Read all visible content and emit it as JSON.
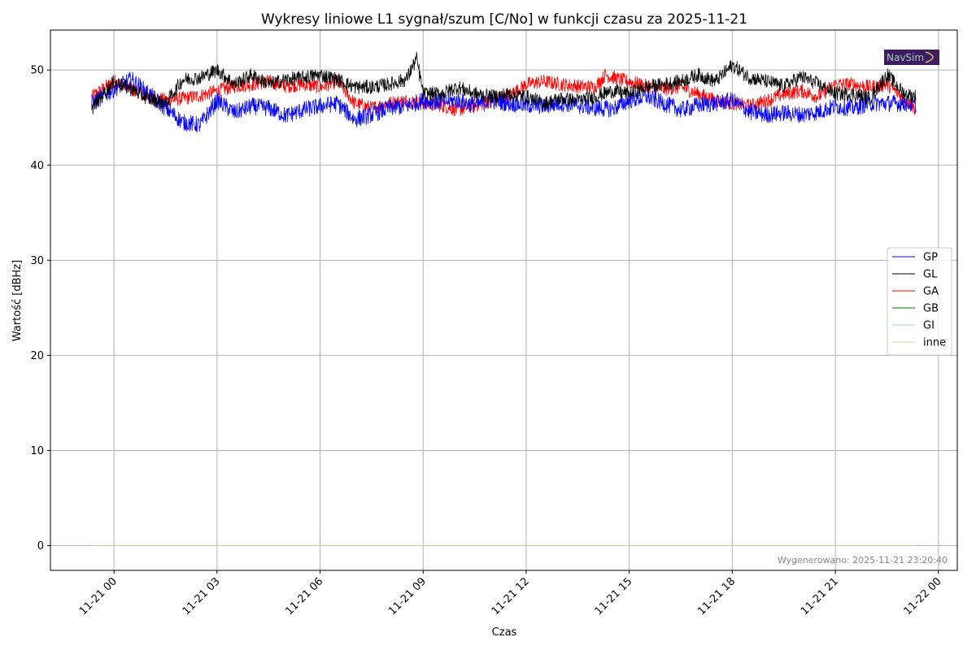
{
  "chart_data": {
    "type": "line",
    "title": "Wykresy liniowe L1 sygnał/szum [C/No] w funkcji czasu za 2025-11-21",
    "xlabel": "Czas",
    "ylabel": "Wartość [dBHz]",
    "x_ticks": [
      "11-21 00",
      "11-21 03",
      "11-21 06",
      "11-21 09",
      "11-21 12",
      "11-21 15",
      "11-21 18",
      "11-21 21",
      "11-22 00"
    ],
    "x_tick_hours": [
      0,
      3,
      6,
      9,
      12,
      15,
      18,
      21,
      24
    ],
    "xlim_hours": [
      -1.85,
      24.55
    ],
    "data_range_hours": [
      -0.65,
      23.35
    ],
    "y_ticks": [
      0,
      10,
      20,
      30,
      40,
      50
    ],
    "ylim": [
      -2.6,
      54.2
    ],
    "grid": true,
    "legend_position": "center-right",
    "series": [
      {
        "name": "GP",
        "color": "#0000ff",
        "x_hours": [
          -0.65,
          0,
          0.5,
          1,
          1.5,
          2,
          2.5,
          3,
          3.5,
          4,
          4.5,
          5,
          5.5,
          6,
          6.5,
          7,
          7.5,
          8,
          8.5,
          9,
          9.5,
          10,
          10.5,
          11,
          11.5,
          12,
          12.5,
          13,
          13.5,
          14,
          14.5,
          15,
          15.5,
          16,
          16.5,
          17,
          17.5,
          18,
          18.5,
          19,
          19.5,
          20,
          20.5,
          21,
          21.5,
          22,
          22.5,
          23,
          23.35
        ],
        "values": [
          46.5,
          48,
          49,
          47.5,
          46,
          44.5,
          44.2,
          46.8,
          45.5,
          46.2,
          46,
          45.2,
          45.8,
          46.2,
          46.5,
          44.8,
          45.3,
          46,
          46.2,
          46.8,
          46.6,
          46.8,
          46.3,
          46.8,
          46.5,
          46.3,
          46.2,
          46.5,
          46.3,
          46,
          45.9,
          46.8,
          47.2,
          46.5,
          45.8,
          46.3,
          46.5,
          46.8,
          45.6,
          45.3,
          45.5,
          45.3,
          45.6,
          46.2,
          46,
          46.5,
          46.5,
          46.5,
          46.3
        ]
      },
      {
        "name": "GL",
        "color": "#000000",
        "x_hours": [
          -0.65,
          0,
          0.5,
          1,
          1.5,
          2,
          2.5,
          3,
          3.5,
          4,
          4.5,
          5,
          5.5,
          6,
          6.5,
          7,
          7.5,
          8,
          8.5,
          8.8,
          9,
          9.5,
          10,
          10.5,
          11,
          11.5,
          12,
          12.5,
          13,
          13.5,
          14,
          14.5,
          15,
          15.5,
          16,
          16.5,
          17,
          17.5,
          18,
          18.5,
          19,
          19.5,
          20,
          20.5,
          21,
          21.5,
          22,
          22.5,
          23,
          23.35
        ],
        "values": [
          46,
          48.8,
          48,
          47,
          46.5,
          49,
          49.2,
          50,
          48.5,
          49.5,
          48.5,
          49,
          49.2,
          49.5,
          49,
          48.2,
          48.2,
          48.5,
          49,
          51.2,
          47.5,
          47.5,
          48.2,
          47.5,
          47.2,
          47.5,
          47.2,
          46.5,
          47,
          46.8,
          47.2,
          47.8,
          47.5,
          48.2,
          48.5,
          48.8,
          49.5,
          48.8,
          50.5,
          49.2,
          48.8,
          48.3,
          49.3,
          48.5,
          47.5,
          47.5,
          47,
          49.5,
          47.5,
          47.2
        ]
      },
      {
        "name": "GA",
        "color": "#ff0000",
        "x_hours": [
          -0.65,
          0,
          0.5,
          1,
          1.5,
          2,
          2.5,
          3,
          3.5,
          4,
          4.5,
          5,
          5.5,
          6,
          6.5,
          7,
          7.5,
          8,
          8.5,
          9,
          9.5,
          10,
          10.5,
          11,
          11.5,
          12,
          12.5,
          13,
          13.5,
          14,
          14.3,
          14.7,
          15,
          15.5,
          16,
          16.5,
          17,
          17.5,
          18,
          18.5,
          19,
          19.5,
          20,
          20.5,
          21,
          21.5,
          22,
          22.5,
          23,
          23.35
        ],
        "values": [
          47.2,
          48.8,
          48,
          47.2,
          46.8,
          47,
          47.3,
          47.8,
          48.3,
          48.5,
          48.8,
          48.3,
          48.5,
          48.2,
          48.8,
          46.5,
          46,
          46.5,
          46.8,
          46.5,
          46.3,
          45.8,
          46.3,
          46.8,
          47.3,
          48.5,
          48.8,
          48.5,
          48.3,
          48.2,
          49.5,
          49,
          48.8,
          48.3,
          48,
          48.2,
          47.5,
          46.8,
          46.5,
          46.2,
          46.8,
          47.5,
          47.8,
          47.2,
          48.5,
          48.5,
          48.2,
          48.5,
          47,
          45.8
        ]
      },
      {
        "name": "GB",
        "color": "#008000",
        "x_hours": [
          -0.65,
          23.35
        ],
        "values": [
          0,
          0
        ]
      },
      {
        "name": "GI",
        "color": "#a6c8ea",
        "x_hours": [
          -0.65,
          23.35
        ],
        "values": [
          0,
          0
        ]
      },
      {
        "name": "inne",
        "color": "#f3c99b",
        "x_hours": [
          -0.65,
          23.35
        ],
        "values": [
          0,
          0
        ]
      }
    ],
    "annotation": "Wygenerowano: 2025-11-21 23:20:40",
    "logo_text": "NavSim"
  }
}
